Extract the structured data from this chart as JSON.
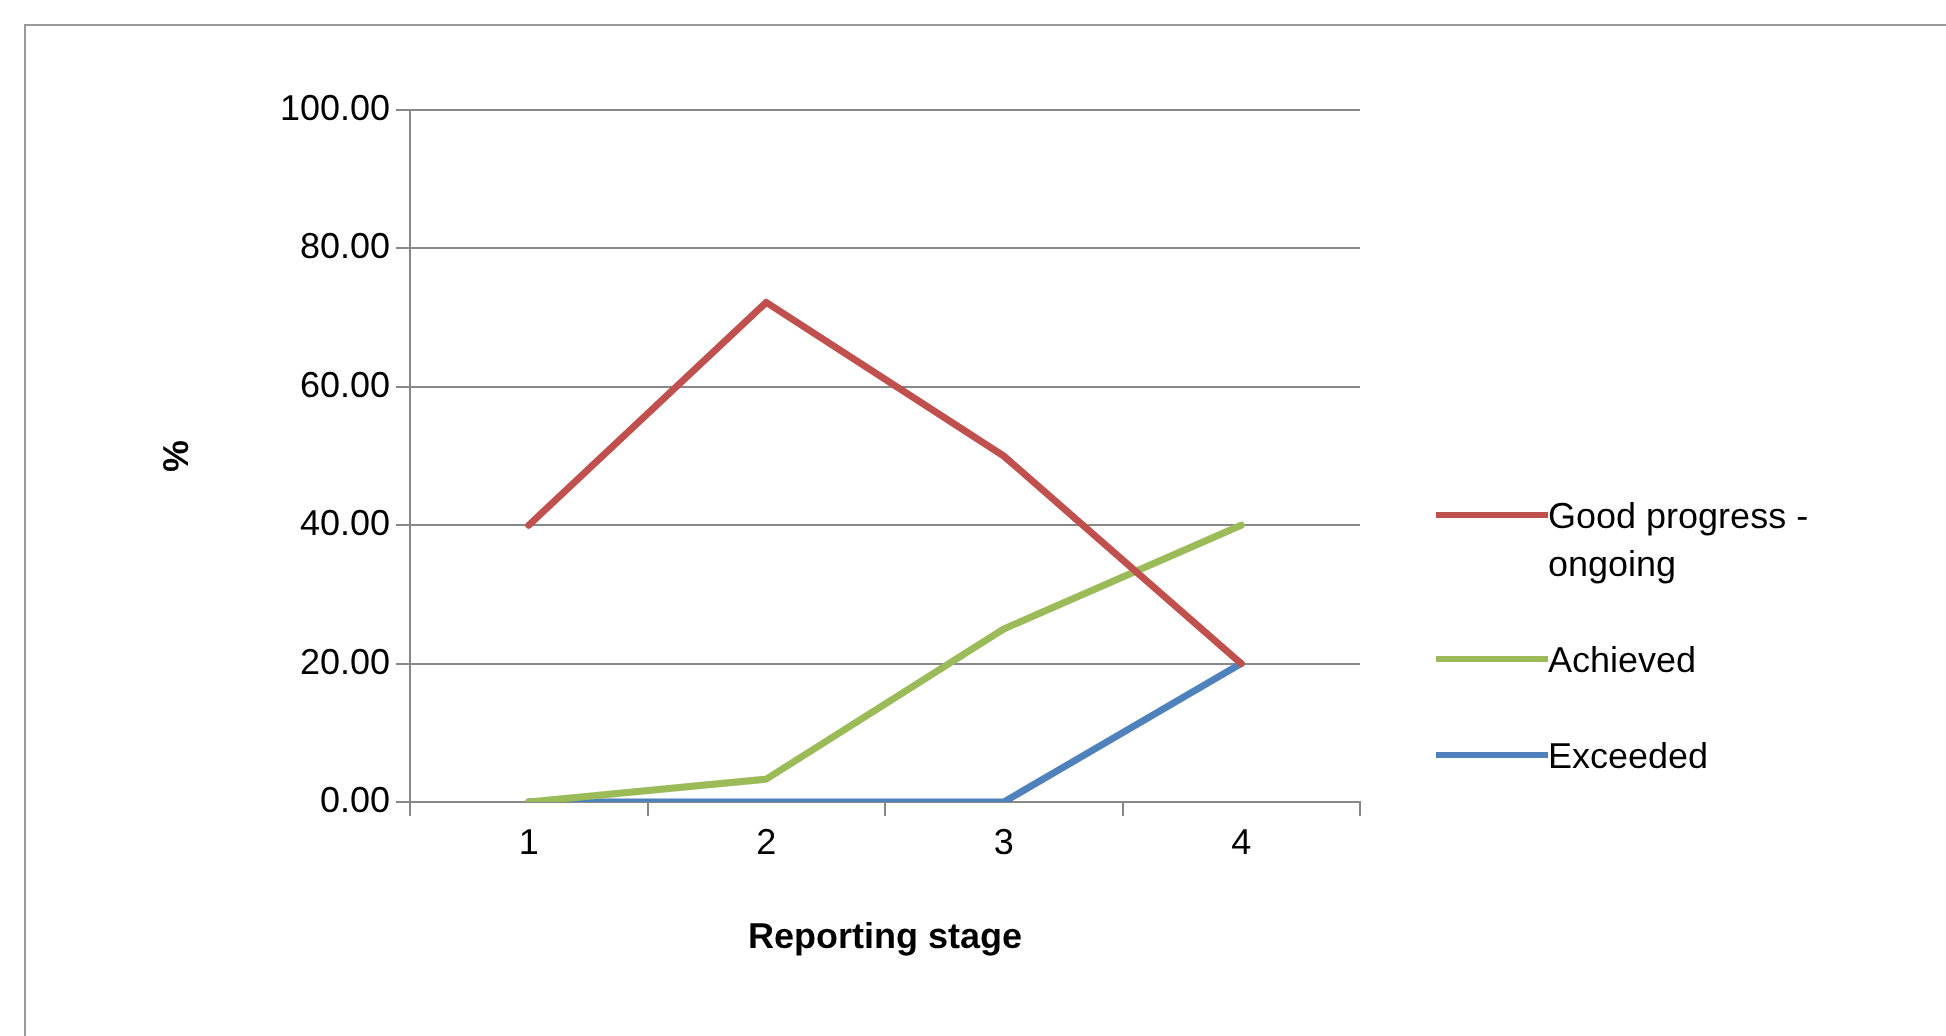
{
  "chart_data": {
    "type": "line",
    "xlabel": "Reporting stage",
    "ylabel": "%",
    "categories": [
      "1",
      "2",
      "3",
      "4"
    ],
    "series": [
      {
        "name": "Good progress - ongoing",
        "color": "#c0504d",
        "values": [
          40,
          72.2,
          50,
          20
        ]
      },
      {
        "name": "Achieved",
        "color": "#9bbb59",
        "values": [
          0,
          3.3,
          25,
          40
        ]
      },
      {
        "name": "Exceeded",
        "color": "#4f81bd",
        "values": [
          0,
          0,
          0,
          20
        ]
      }
    ],
    "ylim": [
      0,
      100
    ],
    "yticks": [
      {
        "value": 0,
        "label": "0.00"
      },
      {
        "value": 20,
        "label": "20.00"
      },
      {
        "value": 40,
        "label": "40.00"
      },
      {
        "value": 60,
        "label": "60.00"
      },
      {
        "value": 80,
        "label": "80.00"
      },
      {
        "value": 100,
        "label": "100.00"
      }
    ],
    "grid": "y",
    "legend": "right",
    "marker": "none",
    "line_style": "solid"
  }
}
